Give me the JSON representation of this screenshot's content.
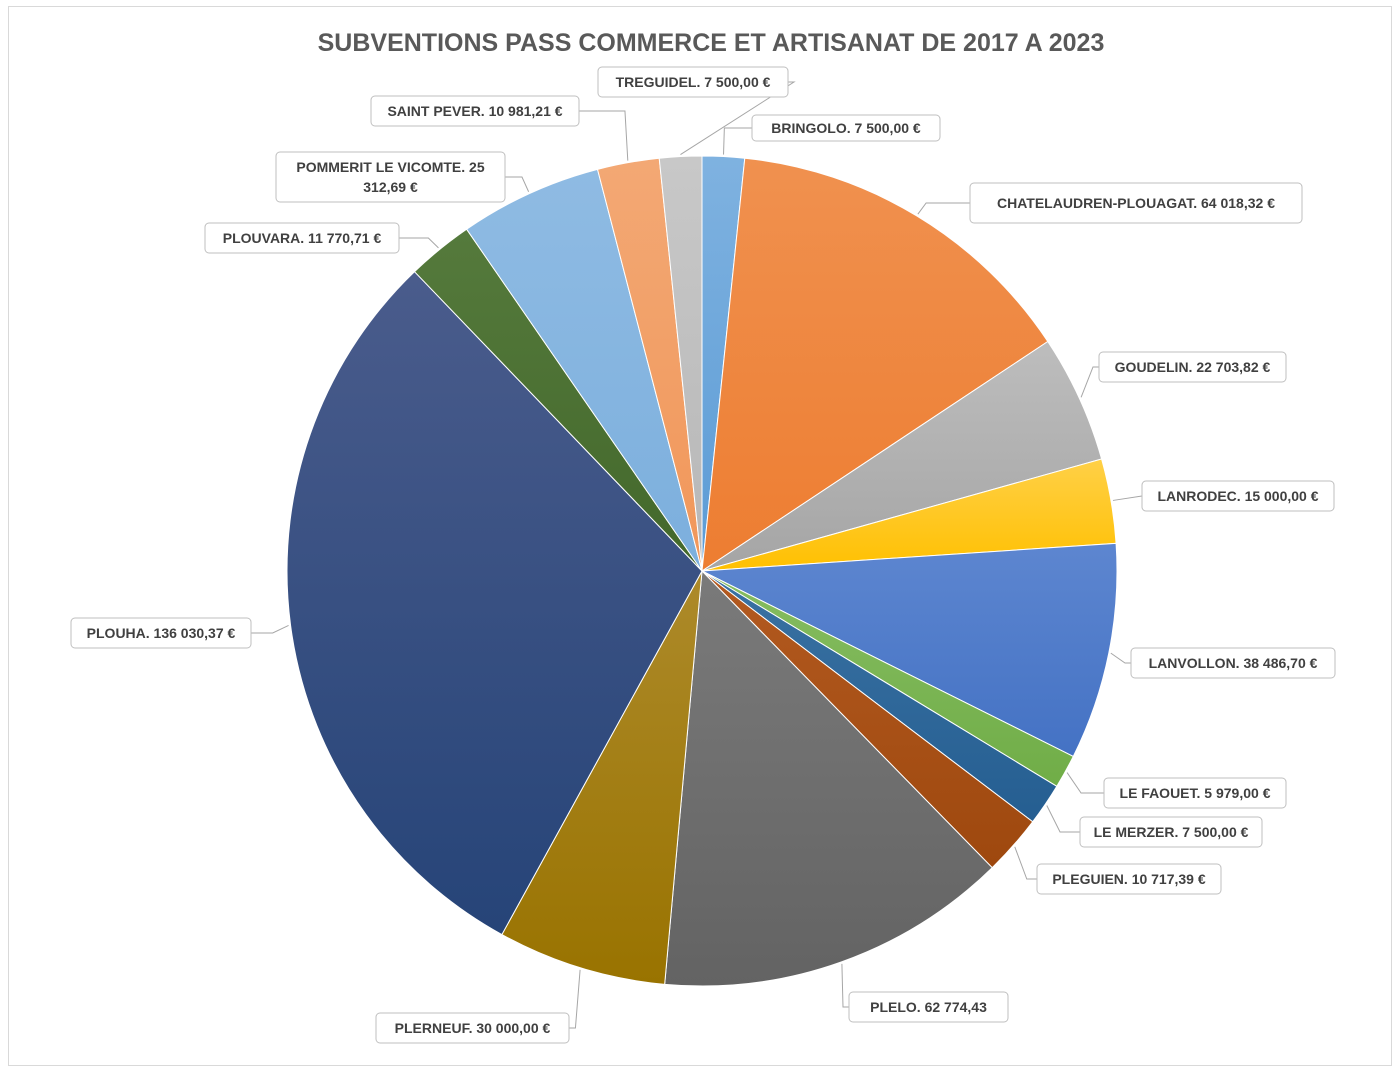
{
  "chart_data": {
    "type": "pie",
    "title": "SUBVENTIONS PASS COMMERCE ET ARTISANAT DE 2017 A 2023",
    "slices": [
      {
        "label": "BRINGOLO",
        "value": 7500.0,
        "display": "BRINGOLO. 7 500,00 €",
        "color": "#5b9bd5",
        "colorLight": "#7fb2e0"
      },
      {
        "label": "CHATELAUDREN-PLOUAGAT",
        "value": 64018.32,
        "display": "CHATELAUDREN-PLOUAGAT. 64 018,32 €",
        "color": "#ed7d31",
        "colorLight": "#f0914f"
      },
      {
        "label": "GOUDELIN",
        "value": 22703.82,
        "display": "GOUDELIN. 22 703,82 €",
        "color": "#a5a5a5",
        "colorLight": "#bdbdbd"
      },
      {
        "label": "LANRODEC",
        "value": 15000.0,
        "display": "LANRODEC. 15 000,00 €",
        "color": "#ffc000",
        "colorLight": "#ffd047"
      },
      {
        "label": "LANVOLLON",
        "value": 38486.7,
        "display": "LANVOLLON. 38 486,70 €",
        "color": "#4472c4",
        "colorLight": "#5d86d0"
      },
      {
        "label": "LE FAOUET",
        "value": 5979.0,
        "display": "LE FAOUET. 5 979,00 €",
        "color": "#70ad47",
        "colorLight": "#86bd62"
      },
      {
        "label": "LE MERZER",
        "value": 7500.0,
        "display": "LE MERZER. 7 500,00 €",
        "color": "#255e91",
        "colorLight": "#3a72a3"
      },
      {
        "label": "PLEGUIEN",
        "value": 10717.39,
        "display": "PLEGUIEN. 10 717,39 €",
        "color": "#9e480e",
        "colorLight": "#b35a20"
      },
      {
        "label": "PLELO",
        "value": 62774.43,
        "display": "PLELO. 62 774,43",
        "color": "#636363",
        "colorLight": "#7a7a7a"
      },
      {
        "label": "PLERNEUF",
        "value": 30000.0,
        "display": "PLERNEUF. 30 000,00 €",
        "color": "#997300",
        "colorLight": "#ad8a2a"
      },
      {
        "label": "PLOUHA",
        "value": 136030.37,
        "display": "PLOUHA. 136 030,37 €",
        "color": "#264478",
        "colorLight": "#4a5c8c"
      },
      {
        "label": "PLOUVARA",
        "value": 11770.71,
        "display": "PLOUVARA. 11 770,71 €",
        "color": "#43682b",
        "colorLight": "#557a3c"
      },
      {
        "label": "POMMERIT LE VICOMTE",
        "value": 25312.69,
        "display": "POMMERIT LE VICOMTE. 25 312,69 €",
        "displayLines": [
          "POMMERIT LE VICOMTE. 25",
          "312,69 €"
        ],
        "color": "#7cafdd",
        "colorLight": "#8fbbe3"
      },
      {
        "label": "SAINT PEVER",
        "value": 10981.21,
        "display": "SAINT PEVER. 10 981,21 €",
        "color": "#f1975a",
        "colorLight": "#f3a874"
      },
      {
        "label": "TREGUIDEL",
        "value": 7500.0,
        "display": "TREGUIDEL. 7 500,00 €",
        "color": "#b7b7b7",
        "colorLight": "#c8c8c8"
      }
    ]
  }
}
